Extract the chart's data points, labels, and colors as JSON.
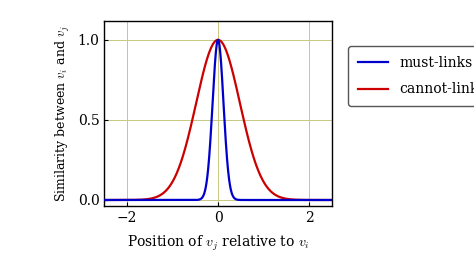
{
  "xlabel": "Position of $v_j$ relative to $v_i$",
  "ylabel": "Similarity between $v_i$ and $v_j$",
  "xlim": [
    -2.5,
    2.5
  ],
  "ylim": [
    -0.04,
    1.12
  ],
  "xticks": [
    -2,
    0,
    2
  ],
  "yticks": [
    0,
    0.5,
    1
  ],
  "must_link_color": "#0000cc",
  "cannot_link_color": "#cc0000",
  "must_link_sigma": 0.12,
  "cannot_link_sigma": 0.48,
  "legend_labels": [
    "must-links",
    "cannot-links"
  ],
  "background_color": "#ffffff",
  "grid_color": "#c8c880",
  "line_width": 1.6
}
